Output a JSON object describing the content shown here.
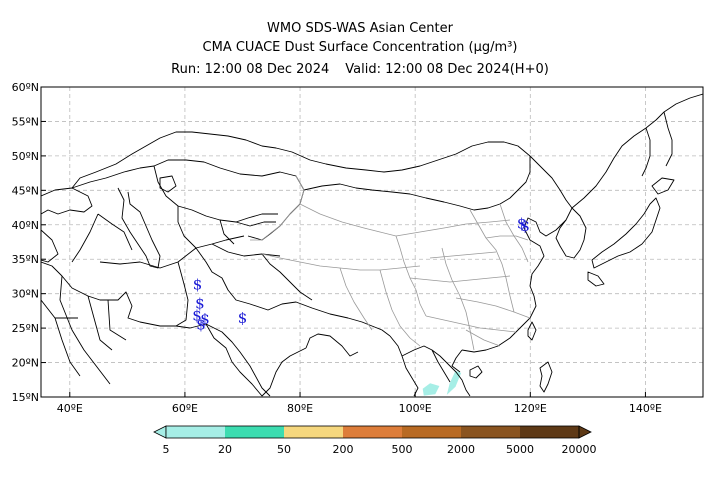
{
  "header": {
    "line1": "WMO SDS-WAS Asian Center",
    "line2": "CMA CUACE Dust Surface Concentration (μg/m³)",
    "run": "Run: 12:00 08 Dec 2024",
    "valid": "Valid: 12:00 08 Dec 2024(H+0)"
  },
  "map": {
    "lon_range": [
      35,
      150
    ],
    "lat_range": [
      15,
      60
    ],
    "lon_ticks": [
      40,
      60,
      80,
      100,
      120,
      140
    ],
    "lat_ticks": [
      15,
      20,
      25,
      30,
      35,
      40,
      45,
      50,
      55,
      60
    ],
    "lon_tick_labels": [
      "40ºE",
      "60ºE",
      "80ºE",
      "100ºE",
      "120ºE",
      "140ºE"
    ],
    "lat_tick_labels": [
      "15ºN",
      "20ºN",
      "25ºN",
      "30ºN",
      "35ºN",
      "40ºN",
      "45ºN",
      "50ºN",
      "55ºN",
      "60ºN"
    ],
    "grid": true,
    "dust_storm_symbol": "$",
    "dust_storm_sites": [
      {
        "lon": 62.2,
        "lat": 31.3
      },
      {
        "lon": 62.6,
        "lat": 28.6
      },
      {
        "lon": 62.1,
        "lat": 26.8
      },
      {
        "lon": 63.5,
        "lat": 26.3
      },
      {
        "lon": 62.8,
        "lat": 25.5
      },
      {
        "lon": 70.0,
        "lat": 26.5
      },
      {
        "lon": 118.5,
        "lat": 40.2
      },
      {
        "lon": 119.1,
        "lat": 39.8
      }
    ],
    "dust_patches": [
      {
        "level": "5-20",
        "color": "#a6eee6",
        "points": [
          [
            101.5,
            15.2
          ],
          [
            103.5,
            15.4
          ],
          [
            104.2,
            16.6
          ],
          [
            102.6,
            17.0
          ],
          [
            101.3,
            16.2
          ]
        ]
      },
      {
        "level": "5-20",
        "color": "#a6eee6",
        "points": [
          [
            105.5,
            15.3
          ],
          [
            107.0,
            16.5
          ],
          [
            108.0,
            18.5
          ],
          [
            107.0,
            18.8
          ],
          [
            106.0,
            17.0
          ]
        ]
      }
    ]
  },
  "colorbar": {
    "levels": [
      "5",
      "20",
      "50",
      "200",
      "500",
      "2000",
      "5000",
      "20000"
    ],
    "colors": [
      "#a6eee6",
      "#3cdcb0",
      "#f5d77e",
      "#dd7d3a",
      "#b86a23",
      "#8a5420",
      "#5e3916"
    ]
  }
}
